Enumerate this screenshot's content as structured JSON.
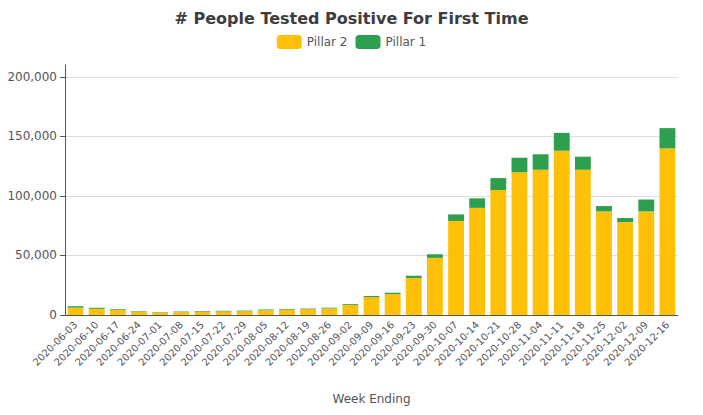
{
  "chart_data": {
    "type": "bar",
    "stacked": true,
    "title": "# People Tested Positive For First Time",
    "xlabel": "Week Ending",
    "categories": [
      "2020-06-03",
      "2020-06-10",
      "2020-06-17",
      "2020-06-24",
      "2020-07-01",
      "2020-07-08",
      "2020-07-15",
      "2020-07-22",
      "2020-07-29",
      "2020-08-05",
      "2020-08-12",
      "2020-08-19",
      "2020-08-26",
      "2020-09-02",
      "2020-09-09",
      "2020-09-16",
      "2020-09-23",
      "2020-09-30",
      "2020-10-07",
      "2020-10-14",
      "2020-10-21",
      "2020-10-28",
      "2020-11-04",
      "2020-11-11",
      "2020-11-18",
      "2020-11-25",
      "2020-12-02",
      "2020-12-09",
      "2020-12-16"
    ],
    "series": [
      {
        "name": "Pillar 2",
        "color": "#FFC107",
        "values": [
          6200,
          5200,
          4200,
          2800,
          2200,
          2500,
          2800,
          3000,
          3200,
          4000,
          4500,
          4800,
          5500,
          8500,
          15000,
          17500,
          31000,
          48000,
          79000,
          90000,
          105000,
          120000,
          122000,
          138000,
          122000,
          87000,
          78000,
          87000,
          140000
        ]
      },
      {
        "name": "Pillar 1",
        "color": "#2E9E4F",
        "values": [
          1200,
          900,
          600,
          400,
          300,
          400,
          500,
          500,
          500,
          600,
          600,
          600,
          600,
          700,
          1000,
          1200,
          2000,
          3000,
          5500,
          8000,
          10000,
          12000,
          13000,
          15000,
          11000,
          4500,
          3500,
          10000,
          17000
        ]
      }
    ],
    "ylim": [
      0,
      210000
    ],
    "yticks": [
      0,
      {
        "value": 50000,
        "label": "50,000"
      },
      {
        "value": 100000,
        "label": "100,000"
      },
      {
        "value": 150000,
        "label": "150,000"
      },
      {
        "value": 200000,
        "label": "200,000"
      }
    ],
    "grid": true,
    "legend": "top"
  }
}
